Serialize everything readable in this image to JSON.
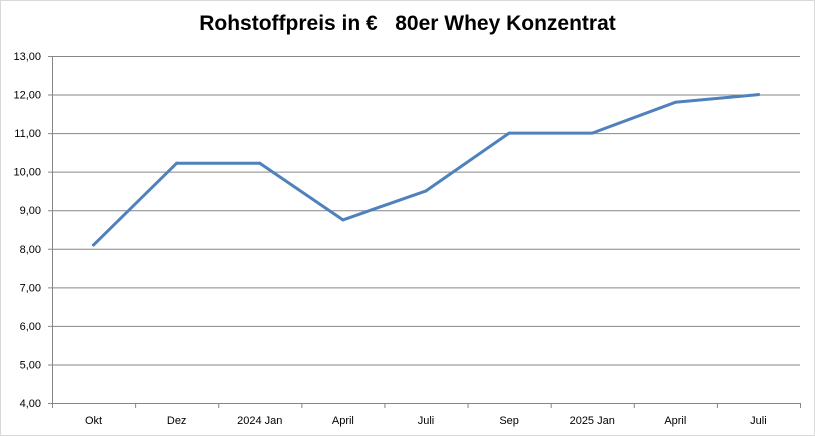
{
  "chart_data": {
    "type": "line",
    "title": "Rohstoffpreis in €   80er Whey Konzentrat",
    "xlabel": "",
    "ylabel": "",
    "categories": [
      "Okt",
      "Dez",
      "2024 Jan",
      "April",
      "Juli",
      "Sep",
      "2025 Jan",
      "April",
      "Juli"
    ],
    "series": [
      {
        "values": [
          8.1,
          10.22,
          10.22,
          8.75,
          9.5,
          11.0,
          11.0,
          11.8,
          12.0
        ]
      }
    ],
    "ylim": [
      4,
      13
    ],
    "yticks": [
      "4,00",
      "5,00",
      "6,00",
      "7,00",
      "8,00",
      "9,00",
      "10,00",
      "11,00",
      "12,00",
      "13,00"
    ],
    "grid": true,
    "legend": "none",
    "colors": {
      "line": "#4f81bd",
      "grid": "#868686",
      "axis": "#868686"
    }
  }
}
